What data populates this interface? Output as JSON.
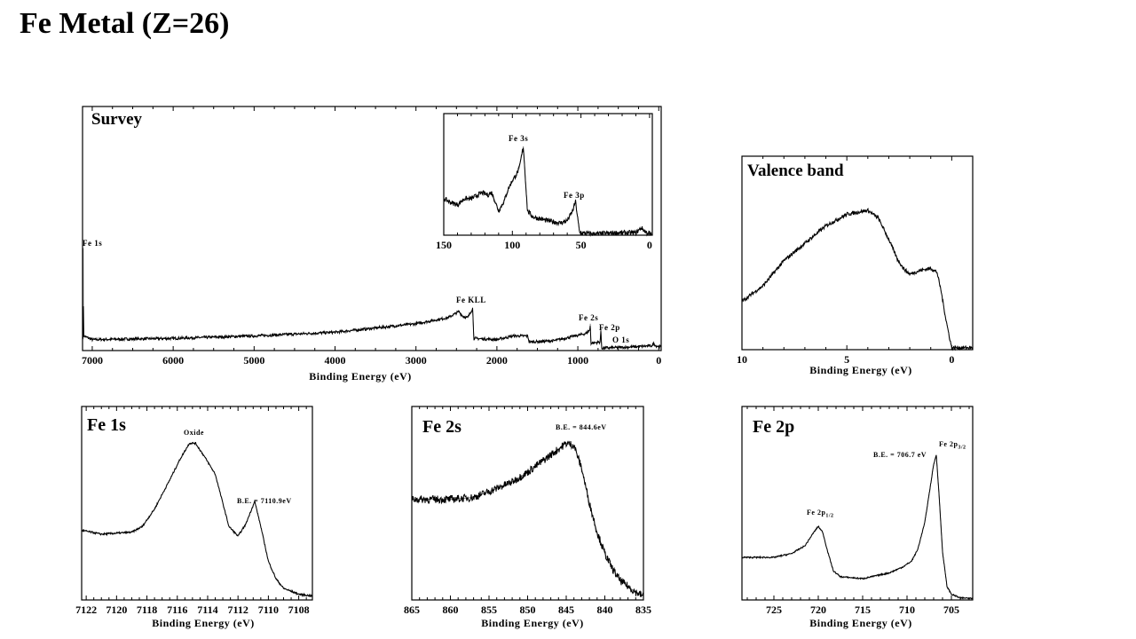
{
  "page_title": "Fe Metal (Z=26)",
  "chart_data": [
    {
      "id": "survey",
      "type": "line",
      "title": "Survey",
      "xlabel": "Binding Energy (eV)",
      "xlim": [
        7120,
        -30
      ],
      "ylim": [
        0,
        1
      ],
      "xticks": [
        7000,
        6000,
        5000,
        4000,
        3000,
        2000,
        1000,
        0
      ],
      "minor": 250,
      "noise": 0.006,
      "annotations": [
        "Fe 1s",
        "Fe KLL",
        "Fe 2s",
        "Fe 2p",
        "O 1s"
      ],
      "points": [
        [
          7120,
          0.05
        ],
        [
          7112,
          0.05
        ],
        [
          7111,
          0.42
        ],
        [
          7108,
          0.06
        ],
        [
          7000,
          0.045
        ],
        [
          6000,
          0.05
        ],
        [
          5000,
          0.06
        ],
        [
          4000,
          0.075
        ],
        [
          3000,
          0.11
        ],
        [
          2600,
          0.135
        ],
        [
          2470,
          0.16
        ],
        [
          2420,
          0.14
        ],
        [
          2360,
          0.135
        ],
        [
          2320,
          0.16
        ],
        [
          2302,
          0.17
        ],
        [
          2300,
          0.175
        ],
        [
          2285,
          0.05
        ],
        [
          2000,
          0.045
        ],
        [
          1800,
          0.06
        ],
        [
          1620,
          0.06
        ],
        [
          1600,
          0.035
        ],
        [
          1300,
          0.04
        ],
        [
          900,
          0.07
        ],
        [
          850,
          0.085
        ],
        [
          846,
          0.11
        ],
        [
          838,
          0.03
        ],
        [
          725,
          0.035
        ],
        [
          715,
          0.08
        ],
        [
          705,
          0.01
        ],
        [
          300,
          0.015
        ],
        [
          80,
          0.02
        ],
        [
          60,
          0.03
        ],
        [
          40,
          0.02
        ],
        [
          -30,
          0.015
        ]
      ]
    },
    {
      "id": "inset",
      "type": "line",
      "title": "",
      "xlabel": "",
      "xlim": [
        150,
        -2
      ],
      "ylim": [
        0,
        1
      ],
      "xticks": [
        150,
        100,
        50,
        0
      ],
      "minor": 10,
      "noise": 0.02,
      "annotations": [
        "Fe 3s",
        "Fe 3p"
      ],
      "points": [
        [
          150,
          0.3
        ],
        [
          145,
          0.27
        ],
        [
          140,
          0.25
        ],
        [
          135,
          0.3
        ],
        [
          130,
          0.3
        ],
        [
          122,
          0.35
        ],
        [
          118,
          0.33
        ],
        [
          115,
          0.35
        ],
        [
          112,
          0.26
        ],
        [
          110,
          0.2
        ],
        [
          106,
          0.28
        ],
        [
          103,
          0.38
        ],
        [
          100,
          0.45
        ],
        [
          97,
          0.5
        ],
        [
          95,
          0.55
        ],
        [
          92,
          0.73
        ],
        [
          89,
          0.2
        ],
        [
          85,
          0.15
        ],
        [
          75,
          0.12
        ],
        [
          65,
          0.1
        ],
        [
          60,
          0.12
        ],
        [
          56,
          0.2
        ],
        [
          54,
          0.28
        ],
        [
          51,
          0.02
        ],
        [
          40,
          0.01
        ],
        [
          25,
          0.02
        ],
        [
          10,
          0.02
        ],
        [
          6,
          0.06
        ],
        [
          2,
          0.02
        ],
        [
          -2,
          0.0
        ]
      ]
    },
    {
      "id": "valence",
      "type": "line",
      "title": "Valence band",
      "xlabel": "Binding Energy (eV)",
      "xlim": [
        10,
        -1
      ],
      "ylim": [
        0,
        1
      ],
      "xticks": [
        10,
        5,
        0
      ],
      "minor": 1,
      "noise": 0.01,
      "annotations": [],
      "points": [
        [
          10,
          0.25
        ],
        [
          9,
          0.33
        ],
        [
          8,
          0.46
        ],
        [
          7,
          0.55
        ],
        [
          6,
          0.64
        ],
        [
          5,
          0.7
        ],
        [
          4.5,
          0.71
        ],
        [
          4,
          0.72
        ],
        [
          3.5,
          0.68
        ],
        [
          3,
          0.57
        ],
        [
          2.6,
          0.47
        ],
        [
          2.3,
          0.42
        ],
        [
          2,
          0.39
        ],
        [
          1.5,
          0.41
        ],
        [
          1,
          0.42
        ],
        [
          0.7,
          0.4
        ],
        [
          0.5,
          0.3
        ],
        [
          0.3,
          0.17
        ],
        [
          0.1,
          0.06
        ],
        [
          0,
          0.01
        ],
        [
          -1,
          0.01
        ]
      ]
    },
    {
      "id": "fe1s",
      "type": "line",
      "title": "Fe 1s",
      "xlabel": "Binding Energy (eV)",
      "xlim": [
        7122.3,
        7107.1
      ],
      "ylim": [
        0,
        1
      ],
      "xticks": [
        7122,
        7120,
        7118,
        7116,
        7114,
        7112,
        7110,
        7108
      ],
      "minor": 0.5,
      "noise": 0.005,
      "annotations": [
        "Oxide",
        "B.E. = 7110.9eV"
      ],
      "points": [
        [
          7122.3,
          0.36
        ],
        [
          7121,
          0.34
        ],
        [
          7119,
          0.35
        ],
        [
          7118.3,
          0.38
        ],
        [
          7117.5,
          0.47
        ],
        [
          7116.5,
          0.62
        ],
        [
          7115.8,
          0.73
        ],
        [
          7115.2,
          0.81
        ],
        [
          7114.8,
          0.81
        ],
        [
          7114.2,
          0.74
        ],
        [
          7113.5,
          0.65
        ],
        [
          7113,
          0.5
        ],
        [
          7112.6,
          0.38
        ],
        [
          7112,
          0.33
        ],
        [
          7111.5,
          0.39
        ],
        [
          7110.9,
          0.51
        ],
        [
          7110.5,
          0.38
        ],
        [
          7110,
          0.2
        ],
        [
          7109.5,
          0.11
        ],
        [
          7109,
          0.06
        ],
        [
          7108,
          0.03
        ],
        [
          7107.1,
          0.02
        ]
      ]
    },
    {
      "id": "fe2s",
      "type": "line",
      "title": "Fe 2s",
      "xlabel": "Binding Energy (eV)",
      "xlim": [
        865,
        835
      ],
      "ylim": [
        0,
        1
      ],
      "xticks": [
        865,
        860,
        855,
        850,
        845,
        840,
        835
      ],
      "minor": 1,
      "noise": 0.02,
      "annotations": [
        "B.E. = 844.6eV"
      ],
      "points": [
        [
          865,
          0.52
        ],
        [
          860,
          0.52
        ],
        [
          857,
          0.53
        ],
        [
          855,
          0.56
        ],
        [
          852,
          0.61
        ],
        [
          850,
          0.66
        ],
        [
          848,
          0.72
        ],
        [
          846,
          0.78
        ],
        [
          845,
          0.81
        ],
        [
          844,
          0.8
        ],
        [
          843,
          0.68
        ],
        [
          842,
          0.5
        ],
        [
          841,
          0.35
        ],
        [
          840,
          0.24
        ],
        [
          839,
          0.16
        ],
        [
          838,
          0.1
        ],
        [
          836,
          0.04
        ],
        [
          835,
          0.02
        ]
      ]
    },
    {
      "id": "fe2p",
      "type": "line",
      "title": "Fe 2p",
      "xlabel": "Binding Energy (eV)",
      "xlim": [
        728.6,
        702.6
      ],
      "ylim": [
        0,
        1
      ],
      "xticks": [
        725,
        720,
        715,
        710,
        705
      ],
      "minor": 1,
      "noise": 0.004,
      "annotations": [
        "B.E. = 706.7 eV"
      ],
      "points": [
        [
          728.6,
          0.22
        ],
        [
          725,
          0.22
        ],
        [
          723,
          0.24
        ],
        [
          721.5,
          0.28
        ],
        [
          720.5,
          0.35
        ],
        [
          720,
          0.38
        ],
        [
          719.5,
          0.35
        ],
        [
          719,
          0.26
        ],
        [
          718.3,
          0.15
        ],
        [
          717.5,
          0.12
        ],
        [
          715,
          0.11
        ],
        [
          712,
          0.14
        ],
        [
          710.5,
          0.17
        ],
        [
          709.5,
          0.2
        ],
        [
          708.8,
          0.26
        ],
        [
          708,
          0.4
        ],
        [
          707.5,
          0.55
        ],
        [
          707,
          0.7
        ],
        [
          706.7,
          0.75
        ],
        [
          706.4,
          0.55
        ],
        [
          706,
          0.25
        ],
        [
          705.5,
          0.07
        ],
        [
          705,
          0.03
        ],
        [
          704,
          0.01
        ],
        [
          702.6,
          0.01
        ]
      ]
    }
  ],
  "fe2p_labels": {
    "p12_main": "Fe 2p",
    "p12_sub": "1/2",
    "p32_main": "Fe 2p",
    "p32_sub": "3/2"
  }
}
